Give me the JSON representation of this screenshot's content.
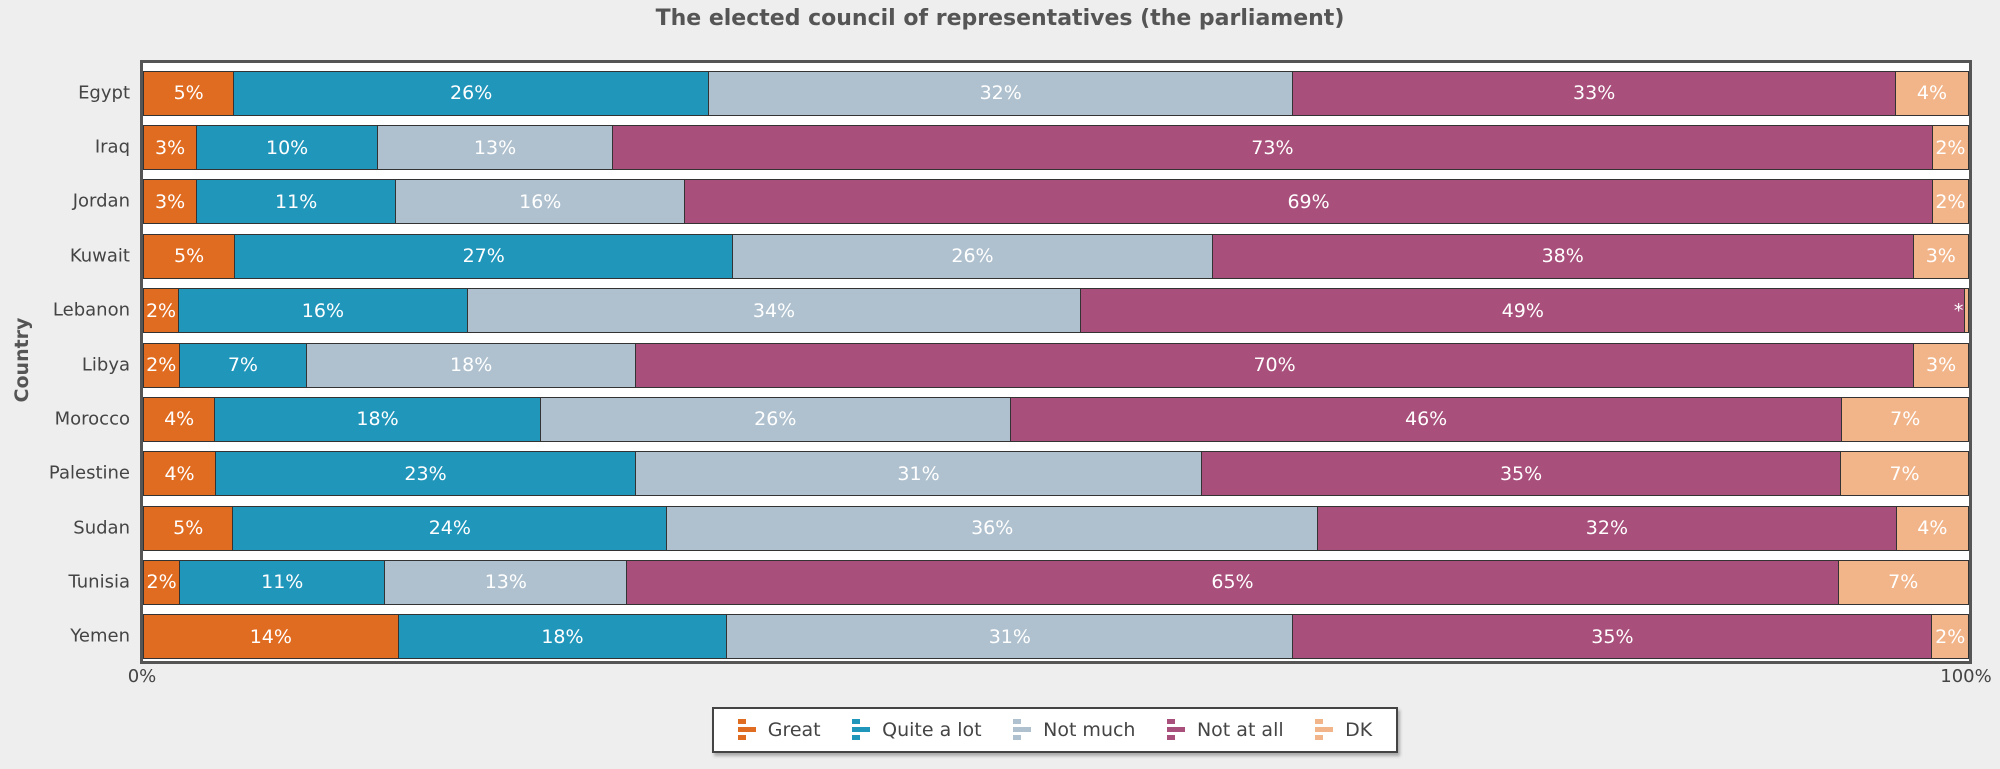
{
  "chart_data": {
    "type": "bar",
    "orientation": "horizontal",
    "stacked": true,
    "title": "The elected council of representatives (the parliament)",
    "xlabel": "",
    "ylabel": "Country",
    "xlim": [
      0,
      100
    ],
    "x_ticks": [
      "0%",
      "100%"
    ],
    "legend_position": "bottom",
    "categories": [
      "Egypt",
      "Iraq",
      "Jordan",
      "Kuwait",
      "Lebanon",
      "Libya",
      "Morocco",
      "Palestine",
      "Sudan",
      "Tunisia",
      "Yemen"
    ],
    "series": [
      {
        "name": "Great",
        "color": "#e06c21",
        "values": [
          5,
          3,
          3,
          5,
          2,
          2,
          4,
          4,
          5,
          2,
          14
        ]
      },
      {
        "name": "Quite a lot",
        "color": "#2196bb",
        "values": [
          26,
          10,
          11,
          27,
          16,
          7,
          18,
          23,
          24,
          11,
          18
        ]
      },
      {
        "name": "Not much",
        "color": "#afc1cf",
        "values": [
          32,
          13,
          16,
          26,
          34,
          18,
          26,
          31,
          36,
          13,
          31
        ]
      },
      {
        "name": "Not at all",
        "color": "#a84f7b",
        "values": [
          33,
          73,
          69,
          38,
          49,
          70,
          46,
          35,
          32,
          65,
          35
        ]
      },
      {
        "name": "DK",
        "color": "#f2b58a",
        "values": [
          4,
          2,
          2,
          3,
          0.2,
          3,
          7,
          7,
          4,
          7,
          2
        ]
      }
    ],
    "special_labels": {
      "Lebanon-DK": "*"
    }
  }
}
